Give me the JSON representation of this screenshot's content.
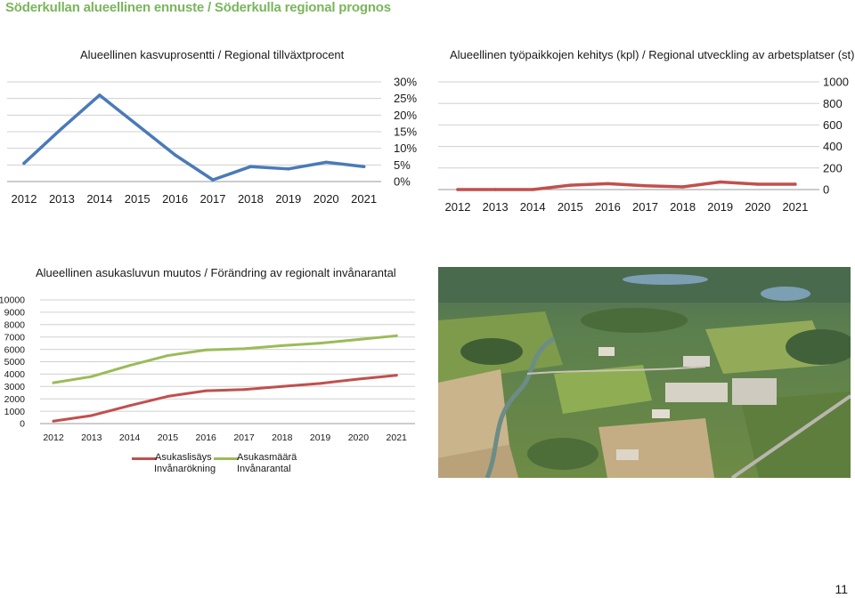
{
  "page": {
    "title": "Söderkullan alueellinen ennuste / Söderkulla regional prognos",
    "page_number": "11"
  },
  "chart_data": [
    {
      "id": "growth",
      "type": "line",
      "title": "Alueellinen kasvuprosentti / Regional tillväxtprocent",
      "categories": [
        "2012",
        "2013",
        "2014",
        "2015",
        "2016",
        "2017",
        "2018",
        "2019",
        "2020",
        "2021"
      ],
      "series": [
        {
          "values": [
            5.5,
            16,
            26,
            17,
            8,
            0.5,
            4.5,
            3.8,
            5.8,
            4.5
          ],
          "color": "#4a7ab8"
        }
      ],
      "ylim": [
        0,
        30
      ],
      "yticks": [
        "30%",
        "25%",
        "20%",
        "15%",
        "10%",
        "5%",
        "0%"
      ],
      "ytick_values": [
        30,
        25,
        20,
        15,
        10,
        5,
        0
      ],
      "y_axis_side": "right",
      "grid": true
    },
    {
      "id": "jobs",
      "type": "line",
      "title": "Alueellinen työpaikkojen kehitys (kpl) / Regional utveckling av arbetsplatser (st)",
      "categories": [
        "2012",
        "2013",
        "2014",
        "2015",
        "2016",
        "2017",
        "2018",
        "2019",
        "2020",
        "2021"
      ],
      "series": [
        {
          "values": [
            0,
            0,
            0,
            40,
            55,
            35,
            25,
            70,
            50,
            50
          ],
          "color": "#c0504d"
        }
      ],
      "ylim": [
        0,
        1000
      ],
      "yticks": [
        "1000",
        "800",
        "600",
        "400",
        "200",
        "0"
      ],
      "ytick_values": [
        1000,
        800,
        600,
        400,
        200,
        0
      ],
      "y_axis_side": "right",
      "grid": true
    },
    {
      "id": "population",
      "type": "line",
      "title": "Alueellinen asukasluvun muutos / Förändring av regionalt invånarantal",
      "categories": [
        "2012",
        "2013",
        "2014",
        "2015",
        "2016",
        "2017",
        "2018",
        "2019",
        "2020",
        "2021"
      ],
      "series": [
        {
          "name": "Asukaslisäys",
          "name2": "Invånarökning",
          "values": [
            200,
            650,
            1450,
            2200,
            2650,
            2750,
            3000,
            3250,
            3600,
            3900
          ],
          "color": "#c0504d"
        },
        {
          "name": "Asukasmäärä",
          "name2": "Invånarantal",
          "values": [
            3300,
            3800,
            4700,
            5500,
            5950,
            6050,
            6300,
            6500,
            6800,
            7100
          ],
          "color": "#9bbb59"
        }
      ],
      "ylim": [
        0,
        10000
      ],
      "yticks": [
        "10000",
        "9000",
        "8000",
        "7000",
        "6000",
        "5000",
        "4000",
        "3000",
        "2000",
        "1000",
        "0"
      ],
      "ytick_values": [
        10000,
        9000,
        8000,
        7000,
        6000,
        5000,
        4000,
        3000,
        2000,
        1000,
        0
      ],
      "y_axis_side": "left",
      "legend": "bottom",
      "grid": true
    }
  ]
}
